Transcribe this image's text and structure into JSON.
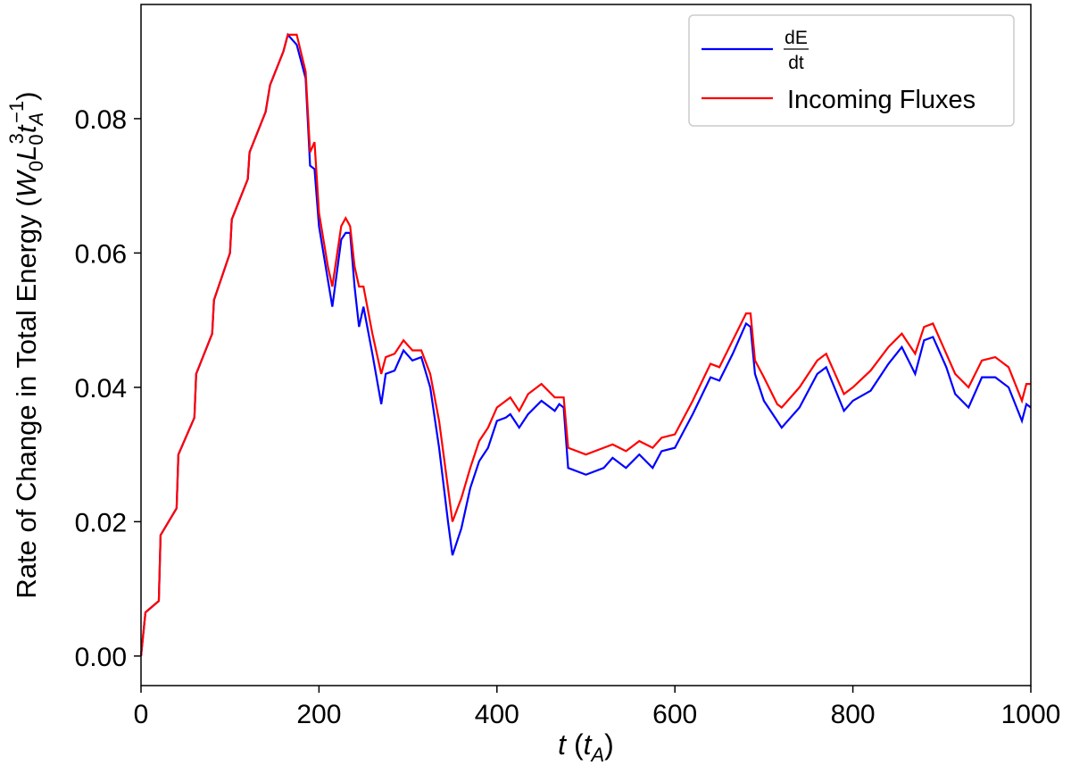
{
  "chart_data": {
    "type": "line",
    "xlabel": [
      "t",
      " (",
      "t",
      "A",
      ")"
    ],
    "ylabel": [
      "Rate of Change in Total Energy (",
      "W",
      "0",
      "L",
      "0",
      "3",
      "t",
      "A",
      "−1",
      ")"
    ],
    "x": [
      0,
      5,
      20,
      22,
      40,
      42,
      60,
      62,
      80,
      82,
      100,
      102,
      120,
      122,
      140,
      145,
      160,
      165,
      175,
      185,
      190,
      195,
      200,
      210,
      215,
      225,
      230,
      235,
      240,
      245,
      250,
      260,
      270,
      275,
      285,
      295,
      305,
      315,
      325,
      335,
      345,
      350,
      360,
      370,
      380,
      390,
      400,
      410,
      415,
      425,
      435,
      450,
      465,
      470,
      475,
      480,
      500,
      520,
      530,
      545,
      560,
      575,
      585,
      600,
      620,
      640,
      650,
      665,
      680,
      685,
      690,
      700,
      715,
      720,
      740,
      760,
      770,
      790,
      800,
      820,
      840,
      855,
      870,
      880,
      890,
      905,
      915,
      930,
      945,
      960,
      975,
      990,
      995,
      1000
    ],
    "series": [
      {
        "name": [
          "dE",
          "dt"
        ],
        "color": "#0000ff",
        "values": [
          0,
          0.0065,
          0.0082,
          0.018,
          0.022,
          0.03,
          0.0355,
          0.042,
          0.048,
          0.053,
          0.06,
          0.065,
          0.071,
          0.075,
          0.081,
          0.085,
          0.09,
          0.0925,
          0.091,
          0.086,
          0.073,
          0.0725,
          0.064,
          0.056,
          0.052,
          0.062,
          0.063,
          0.063,
          0.055,
          0.049,
          0.052,
          0.045,
          0.0375,
          0.042,
          0.0425,
          0.0455,
          0.044,
          0.0445,
          0.04,
          0.031,
          0.02,
          0.015,
          0.019,
          0.025,
          0.029,
          0.031,
          0.035,
          0.0355,
          0.036,
          0.034,
          0.036,
          0.038,
          0.0365,
          0.0375,
          0.037,
          0.028,
          0.027,
          0.028,
          0.0295,
          0.028,
          0.03,
          0.028,
          0.0305,
          0.031,
          0.036,
          0.0415,
          0.041,
          0.045,
          0.0495,
          0.049,
          0.042,
          0.038,
          0.035,
          0.034,
          0.037,
          0.042,
          0.043,
          0.0365,
          0.038,
          0.0395,
          0.0435,
          0.046,
          0.042,
          0.047,
          0.0475,
          0.043,
          0.039,
          0.037,
          0.0415,
          0.0415,
          0.04,
          0.035,
          0.0375,
          0.037
        ]
      },
      {
        "name": "Incoming Fluxes",
        "color": "#ff0000",
        "values": [
          0,
          0.0065,
          0.0082,
          0.018,
          0.022,
          0.03,
          0.0355,
          0.042,
          0.048,
          0.053,
          0.06,
          0.065,
          0.071,
          0.075,
          0.081,
          0.085,
          0.09,
          0.0925,
          0.0925,
          0.087,
          0.075,
          0.0765,
          0.066,
          0.058,
          0.055,
          0.064,
          0.0652,
          0.064,
          0.058,
          0.055,
          0.055,
          0.048,
          0.042,
          0.0445,
          0.045,
          0.047,
          0.0455,
          0.0455,
          0.042,
          0.035,
          0.025,
          0.02,
          0.0235,
          0.028,
          0.032,
          0.034,
          0.037,
          0.038,
          0.0385,
          0.0365,
          0.039,
          0.0405,
          0.0385,
          0.0385,
          0.0385,
          0.031,
          0.03,
          0.031,
          0.0315,
          0.0305,
          0.032,
          0.031,
          0.0325,
          0.033,
          0.038,
          0.0435,
          0.043,
          0.047,
          0.051,
          0.051,
          0.044,
          0.0415,
          0.0375,
          0.037,
          0.04,
          0.044,
          0.045,
          0.039,
          0.04,
          0.0425,
          0.046,
          0.048,
          0.045,
          0.049,
          0.0495,
          0.045,
          0.042,
          0.04,
          0.044,
          0.0445,
          0.043,
          0.038,
          0.0405,
          0.0405
        ]
      }
    ],
    "xlim": [
      0,
      1000
    ],
    "xticks": [
      0,
      200,
      400,
      600,
      800,
      1000
    ],
    "ylim": [
      -0.0044,
      0.097
    ],
    "yticks": [
      {
        "value": 0,
        "label": "0.00"
      },
      {
        "value": 0.02,
        "label": "0.02"
      },
      {
        "value": 0.04,
        "label": "0.04"
      },
      {
        "value": 0.06,
        "label": "0.06"
      },
      {
        "value": 0.08,
        "label": "0.08"
      }
    ],
    "legend": "upper right"
  }
}
